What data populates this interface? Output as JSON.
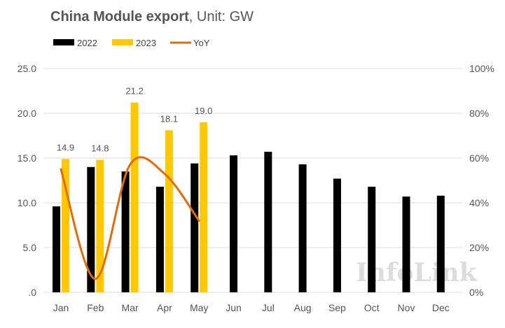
{
  "title": {
    "main": "China Module export",
    "sub": ", Unit: GW"
  },
  "watermark": "InfoLink",
  "colors": {
    "s2022": "#000000",
    "s2023": "#FFC800",
    "yoy": "#E36C0A",
    "grid": "#d9d9d9",
    "text": "#555555"
  },
  "chart_data": {
    "type": "bar",
    "categories": [
      "Jan",
      "Feb",
      "Mar",
      "Apr",
      "May",
      "Jun",
      "Jul",
      "Aug",
      "Sep",
      "Oct",
      "Nov",
      "Dec"
    ],
    "series": [
      {
        "name": "2022",
        "type": "bar",
        "values": [
          9.6,
          14.0,
          13.5,
          11.8,
          14.4,
          15.3,
          15.7,
          14.3,
          12.7,
          11.8,
          10.7,
          10.8
        ]
      },
      {
        "name": "2023",
        "type": "bar",
        "values": [
          14.9,
          14.8,
          21.2,
          18.1,
          19.0,
          null,
          null,
          null,
          null,
          null,
          null,
          null
        ]
      },
      {
        "name": "YoY",
        "type": "line",
        "axis": "right",
        "values": [
          55,
          6,
          57,
          53,
          32,
          null,
          null,
          null,
          null,
          null,
          null,
          null
        ]
      }
    ],
    "data_labels": [
      "14.9",
      "14.8",
      "21.2",
      "18.1",
      "19.0"
    ],
    "yleft": {
      "lim": [
        0,
        25
      ],
      "ticks": [
        "0",
        "5.0",
        "10.0",
        "15.0",
        "20.0",
        "25.0"
      ],
      "tick_values": [
        0,
        5,
        10,
        15,
        20,
        25
      ],
      "zero_label": ".0"
    },
    "yright": {
      "lim": [
        0,
        100
      ],
      "ticks": [
        "0%",
        "20%",
        "40%",
        "60%",
        "80%",
        "100%"
      ],
      "tick_values": [
        0,
        20,
        40,
        60,
        80,
        100
      ]
    },
    "grid": true,
    "legend": "top-left"
  }
}
